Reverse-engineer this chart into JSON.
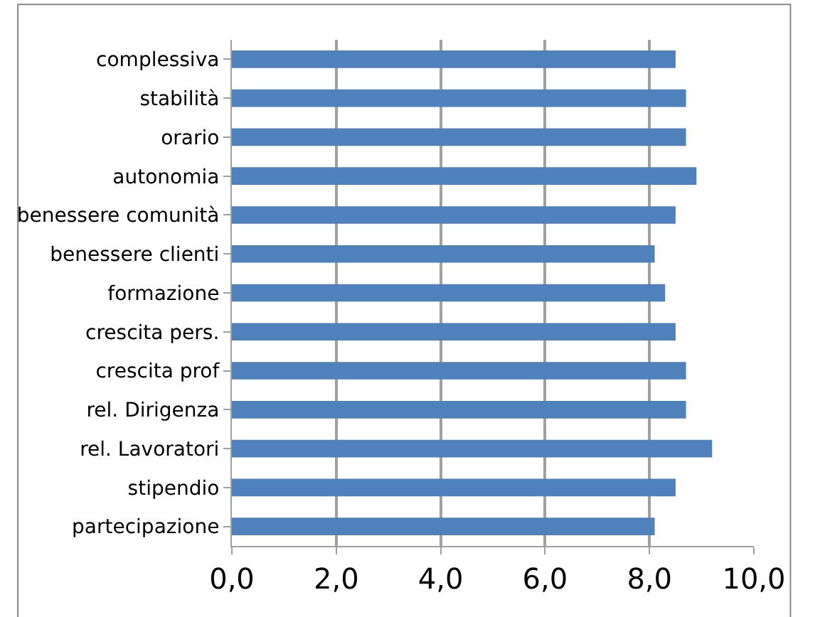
{
  "chart_data": {
    "type": "bar",
    "orientation": "horizontal",
    "categories": [
      "complessiva",
      "stabilità",
      "orario",
      "autonomia",
      "benessere comunità",
      "benessere clienti",
      "formazione",
      "crescita pers.",
      "crescita prof",
      "rel. Dirigenza",
      "rel. Lavoratori",
      "stipendio",
      "partecipazione"
    ],
    "values": [
      8.5,
      8.7,
      8.7,
      8.9,
      8.5,
      8.1,
      8.3,
      8.5,
      8.7,
      8.7,
      9.2,
      8.5,
      8.1
    ],
    "color": "#4f81bd",
    "xlim": [
      0,
      10
    ],
    "xticks": [
      {
        "value": 0,
        "label": "0,0"
      },
      {
        "value": 2,
        "label": "2,0"
      },
      {
        "value": 4,
        "label": "4,0"
      },
      {
        "value": 6,
        "label": "6,0"
      },
      {
        "value": 8,
        "label": "8,0"
      },
      {
        "value": 10,
        "label": "10,0"
      }
    ],
    "grid": "x"
  }
}
